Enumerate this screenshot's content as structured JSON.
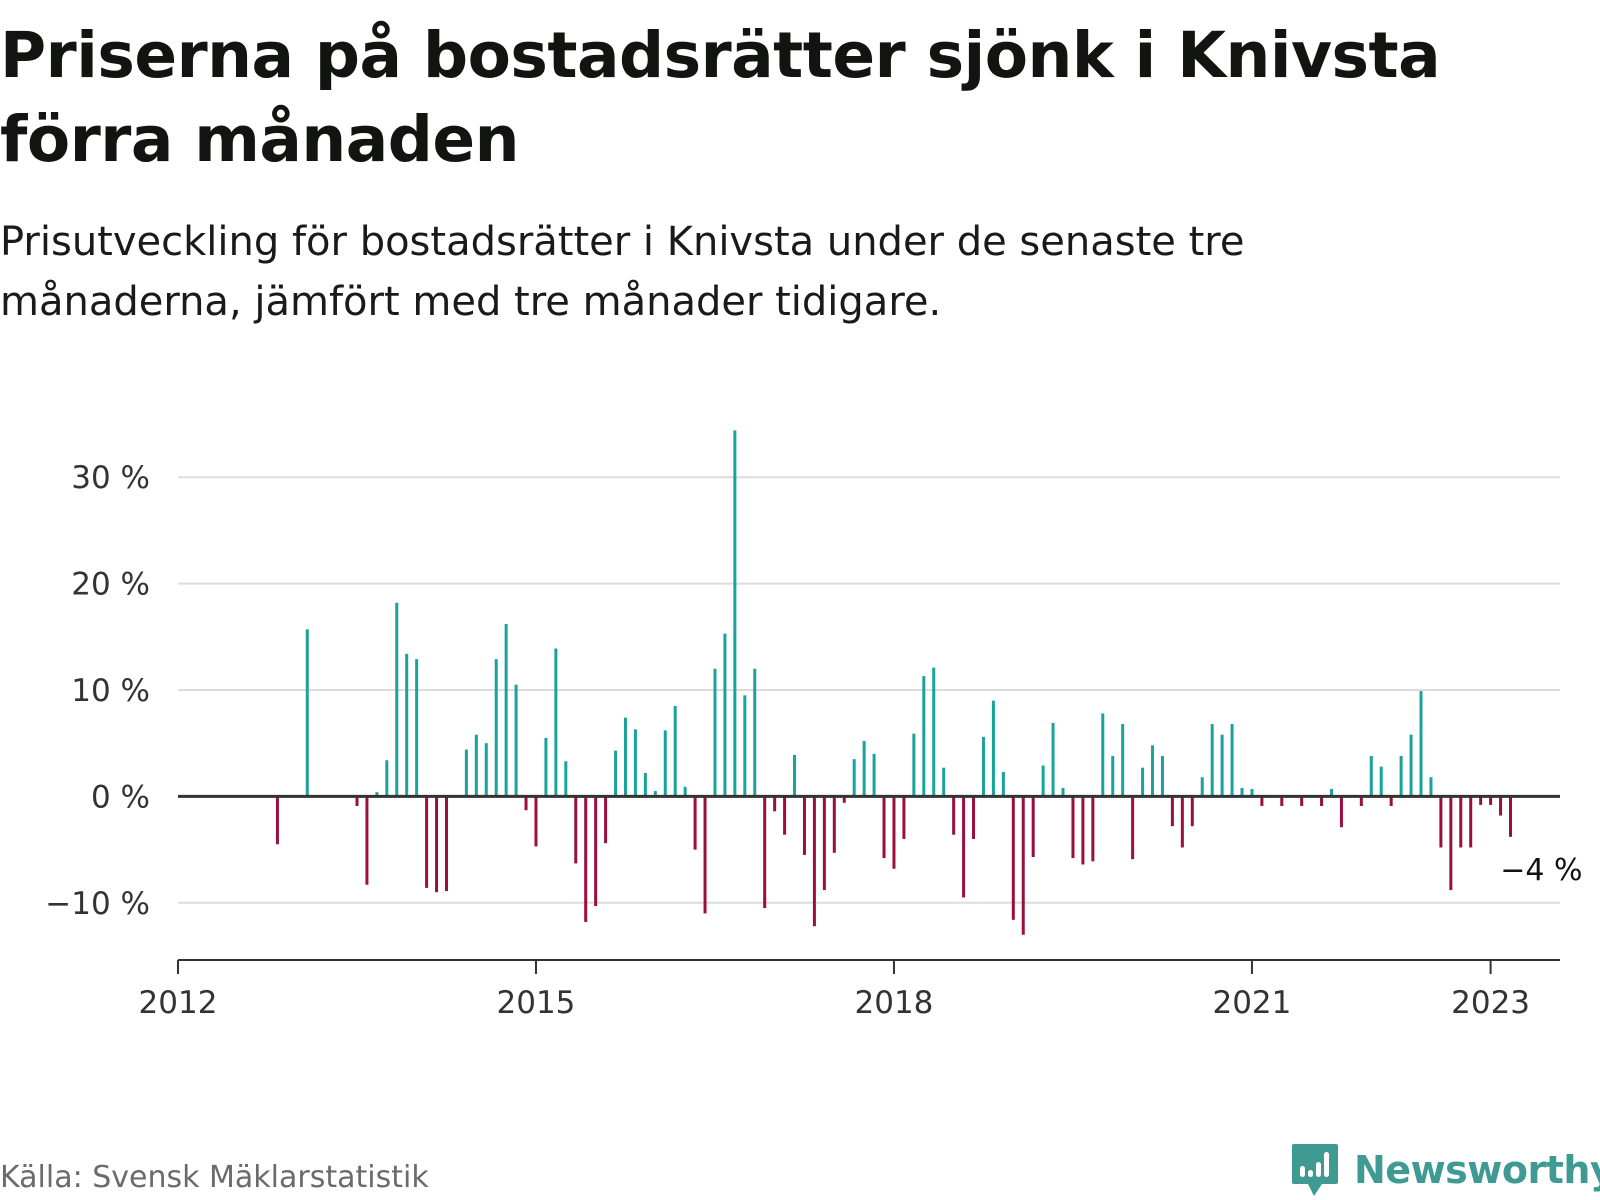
{
  "header": {
    "title": "Priserna på bostadsrätter sjönk i Knivsta förra månaden",
    "subtitle": "Prisutveckling för bostadsrätter i Knivsta under de senaste tre månaderna, jämfört med tre månader tidigare."
  },
  "footer": {
    "source": "Källa: Svensk Mäklarstatistik",
    "brand": "Newsworthy"
  },
  "colors": {
    "positive": "#1aa39a",
    "negative": "#9b0e3e",
    "grid": "#dcdcdc",
    "axis": "#333333",
    "brand": "#3e9a92"
  },
  "chart_data": {
    "type": "bar",
    "x_unit": "month",
    "start_month": "2012-01",
    "end_month": "2023-03",
    "ylim": [
      -15,
      35
    ],
    "grid": true,
    "yticks": [
      {
        "value": -10,
        "label": "−10 %"
      },
      {
        "value": 0,
        "label": "0 %"
      },
      {
        "value": 10,
        "label": "10 %"
      },
      {
        "value": 20,
        "label": "20 %"
      },
      {
        "value": 30,
        "label": "30 %"
      }
    ],
    "xticks": [
      {
        "month": "2012-01",
        "label": "2012"
      },
      {
        "month": "2015-01",
        "label": "2015"
      },
      {
        "month": "2018-01",
        "label": "2018"
      },
      {
        "month": "2021-01",
        "label": "2021"
      },
      {
        "month": "2023-01",
        "label": "2023"
      }
    ],
    "annotation": {
      "month": "2023-03",
      "text": "−4 %"
    },
    "series": [
      {
        "points": [
          [
            "2012-01",
            0
          ],
          [
            "2012-02",
            0
          ],
          [
            "2012-03",
            0
          ],
          [
            "2012-04",
            0
          ],
          [
            "2012-05",
            0
          ],
          [
            "2012-06",
            0
          ],
          [
            "2012-07",
            0
          ],
          [
            "2012-08",
            0
          ],
          [
            "2012-09",
            0
          ],
          [
            "2012-10",
            0
          ],
          [
            "2012-11",
            -4.5
          ],
          [
            "2012-12",
            0
          ],
          [
            "2013-01",
            0
          ],
          [
            "2013-02",
            15.7
          ],
          [
            "2013-03",
            0
          ],
          [
            "2013-04",
            0
          ],
          [
            "2013-05",
            0
          ],
          [
            "2013-06",
            0
          ],
          [
            "2013-07",
            -0.9
          ],
          [
            "2013-08",
            -8.3
          ],
          [
            "2013-09",
            0.4
          ],
          [
            "2013-10",
            3.4
          ],
          [
            "2013-11",
            18.2
          ],
          [
            "2013-12",
            13.4
          ],
          [
            "2014-01",
            12.9
          ],
          [
            "2014-02",
            -8.6
          ],
          [
            "2014-03",
            -9.0
          ],
          [
            "2014-04",
            -8.9
          ],
          [
            "2014-05",
            0
          ],
          [
            "2014-06",
            4.4
          ],
          [
            "2014-07",
            5.8
          ],
          [
            "2014-08",
            5.0
          ],
          [
            "2014-09",
            12.9
          ],
          [
            "2014-10",
            16.2
          ],
          [
            "2014-11",
            10.5
          ],
          [
            "2014-12",
            -1.3
          ],
          [
            "2015-01",
            -4.7
          ],
          [
            "2015-02",
            5.5
          ],
          [
            "2015-03",
            13.9
          ],
          [
            "2015-04",
            3.3
          ],
          [
            "2015-05",
            -6.3
          ],
          [
            "2015-06",
            -11.8
          ],
          [
            "2015-07",
            -10.3
          ],
          [
            "2015-08",
            -4.4
          ],
          [
            "2015-09",
            4.3
          ],
          [
            "2015-10",
            7.4
          ],
          [
            "2015-11",
            6.3
          ],
          [
            "2015-12",
            2.2
          ],
          [
            "2016-01",
            0.5
          ],
          [
            "2016-02",
            6.2
          ],
          [
            "2016-03",
            8.5
          ],
          [
            "2016-04",
            0.9
          ],
          [
            "2016-05",
            -5.0
          ],
          [
            "2016-06",
            -11.0
          ],
          [
            "2016-07",
            12.0
          ],
          [
            "2016-08",
            15.3
          ],
          [
            "2016-09",
            34.4
          ],
          [
            "2016-10",
            9.5
          ],
          [
            "2016-11",
            12.0
          ],
          [
            "2016-12",
            -10.5
          ],
          [
            "2017-01",
            -1.4
          ],
          [
            "2017-02",
            -3.6
          ],
          [
            "2017-03",
            3.9
          ],
          [
            "2017-04",
            -5.5
          ],
          [
            "2017-05",
            -12.2
          ],
          [
            "2017-06",
            -8.8
          ],
          [
            "2017-07",
            -5.3
          ],
          [
            "2017-08",
            -0.6
          ],
          [
            "2017-09",
            3.5
          ],
          [
            "2017-10",
            5.2
          ],
          [
            "2017-11",
            4.0
          ],
          [
            "2017-12",
            -5.8
          ],
          [
            "2018-01",
            -6.8
          ],
          [
            "2018-02",
            -4.0
          ],
          [
            "2018-03",
            5.9
          ],
          [
            "2018-04",
            11.3
          ],
          [
            "2018-05",
            12.1
          ],
          [
            "2018-06",
            2.7
          ],
          [
            "2018-07",
            -3.6
          ],
          [
            "2018-08",
            -9.5
          ],
          [
            "2018-09",
            -4.0
          ],
          [
            "2018-10",
            5.6
          ],
          [
            "2018-11",
            9.0
          ],
          [
            "2018-12",
            2.3
          ],
          [
            "2019-01",
            -11.6
          ],
          [
            "2019-02",
            -13.0
          ],
          [
            "2019-03",
            -5.7
          ],
          [
            "2019-04",
            2.9
          ],
          [
            "2019-05",
            6.9
          ],
          [
            "2019-06",
            0.8
          ],
          [
            "2019-07",
            -5.8
          ],
          [
            "2019-08",
            -6.4
          ],
          [
            "2019-09",
            -6.1
          ],
          [
            "2019-10",
            7.8
          ],
          [
            "2019-11",
            3.8
          ],
          [
            "2019-12",
            6.8
          ],
          [
            "2020-01",
            -5.9
          ],
          [
            "2020-02",
            2.7
          ],
          [
            "2020-03",
            4.8
          ],
          [
            "2020-04",
            3.8
          ],
          [
            "2020-05",
            -2.8
          ],
          [
            "2020-06",
            -4.8
          ],
          [
            "2020-07",
            -2.8
          ],
          [
            "2020-08",
            1.8
          ],
          [
            "2020-09",
            6.8
          ],
          [
            "2020-10",
            5.8
          ],
          [
            "2020-11",
            6.8
          ],
          [
            "2020-12",
            0.8
          ],
          [
            "2021-01",
            0.7
          ],
          [
            "2021-02",
            -0.9
          ],
          [
            "2021-03",
            0
          ],
          [
            "2021-04",
            -0.9
          ],
          [
            "2021-05",
            0
          ],
          [
            "2021-06",
            -0.9
          ],
          [
            "2021-07",
            0
          ],
          [
            "2021-08",
            -0.9
          ],
          [
            "2021-09",
            0.7
          ],
          [
            "2021-10",
            -2.9
          ],
          [
            "2021-11",
            0
          ],
          [
            "2021-12",
            -0.9
          ],
          [
            "2022-01",
            3.8
          ],
          [
            "2022-02",
            2.8
          ],
          [
            "2022-03",
            -0.9
          ],
          [
            "2022-04",
            3.8
          ],
          [
            "2022-05",
            5.8
          ],
          [
            "2022-06",
            9.9
          ],
          [
            "2022-07",
            1.8
          ],
          [
            "2022-08",
            -4.8
          ],
          [
            "2022-09",
            -8.8
          ],
          [
            "2022-10",
            -4.8
          ],
          [
            "2022-11",
            -4.8
          ],
          [
            "2022-12",
            -0.8
          ],
          [
            "2023-01",
            -0.8
          ],
          [
            "2023-02",
            -1.8
          ],
          [
            "2023-03",
            -3.8
          ]
        ]
      }
    ]
  }
}
